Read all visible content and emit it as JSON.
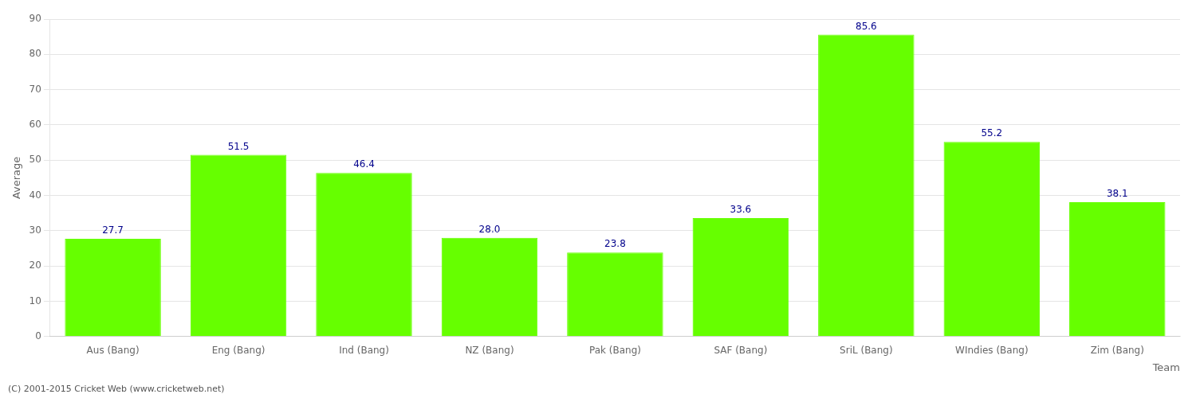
{
  "chart_data": {
    "type": "bar",
    "categories": [
      "Aus (Bang)",
      "Eng (Bang)",
      "Ind (Bang)",
      "NZ (Bang)",
      "Pak (Bang)",
      "SAF (Bang)",
      "SriL (Bang)",
      "WIndies (Bang)",
      "Zim (Bang)"
    ],
    "values": [
      27.7,
      51.5,
      46.4,
      28.0,
      23.8,
      33.6,
      85.6,
      55.2,
      38.1
    ],
    "value_labels": [
      "27.7",
      "51.5",
      "46.4",
      "28.0",
      "23.8",
      "33.6",
      "85.6",
      "55.2",
      "38.1"
    ],
    "color": "#66ff00",
    "xlabel": "Team",
    "ylabel": "Average",
    "ylim": [
      0,
      90
    ],
    "yticks": [
      0,
      10,
      20,
      30,
      40,
      50,
      60,
      70,
      80,
      90
    ],
    "grid": true,
    "data_labels": true,
    "annotations": [
      "(C) 2001-2015 Cricket Web (www.cricketweb.net)"
    ]
  }
}
